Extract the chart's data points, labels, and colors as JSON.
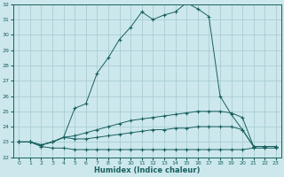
{
  "xlabel": "Humidex (Indice chaleur)",
  "bg_color": "#cce8ec",
  "grid_color": "#aacdd4",
  "line_color": "#1a6060",
  "xmin": 0,
  "xmax": 23,
  "ymin": 22,
  "ymax": 32,
  "xticks": [
    0,
    1,
    2,
    3,
    4,
    5,
    6,
    7,
    8,
    9,
    10,
    11,
    12,
    13,
    14,
    15,
    16,
    17,
    18,
    19,
    20,
    21,
    22,
    23
  ],
  "yticks": [
    22,
    23,
    24,
    25,
    26,
    27,
    28,
    29,
    30,
    31,
    32
  ],
  "series": [
    [
      23.0,
      23.0,
      22.8,
      23.0,
      23.3,
      25.2,
      25.5,
      27.5,
      28.5,
      29.7,
      30.5,
      31.5,
      31.0,
      31.3,
      31.5,
      32.1,
      31.7,
      31.2,
      26.0,
      24.8,
      23.8,
      22.7,
      22.7,
      22.7
    ],
    [
      23.0,
      23.0,
      22.8,
      23.0,
      23.3,
      23.4,
      23.6,
      23.8,
      24.0,
      24.2,
      24.4,
      24.5,
      24.6,
      24.7,
      24.8,
      24.9,
      25.0,
      25.0,
      25.0,
      24.9,
      24.6,
      22.7,
      22.7,
      22.7
    ],
    [
      23.0,
      23.0,
      22.8,
      23.0,
      23.3,
      23.2,
      23.2,
      23.3,
      23.4,
      23.5,
      23.6,
      23.7,
      23.8,
      23.8,
      23.9,
      23.9,
      24.0,
      24.0,
      24.0,
      24.0,
      23.8,
      22.7,
      22.7,
      22.7
    ],
    [
      23.0,
      23.0,
      22.7,
      22.6,
      22.6,
      22.5,
      22.5,
      22.5,
      22.5,
      22.5,
      22.5,
      22.5,
      22.5,
      22.5,
      22.5,
      22.5,
      22.5,
      22.5,
      22.5,
      22.5,
      22.5,
      22.6,
      22.6,
      22.6
    ]
  ]
}
